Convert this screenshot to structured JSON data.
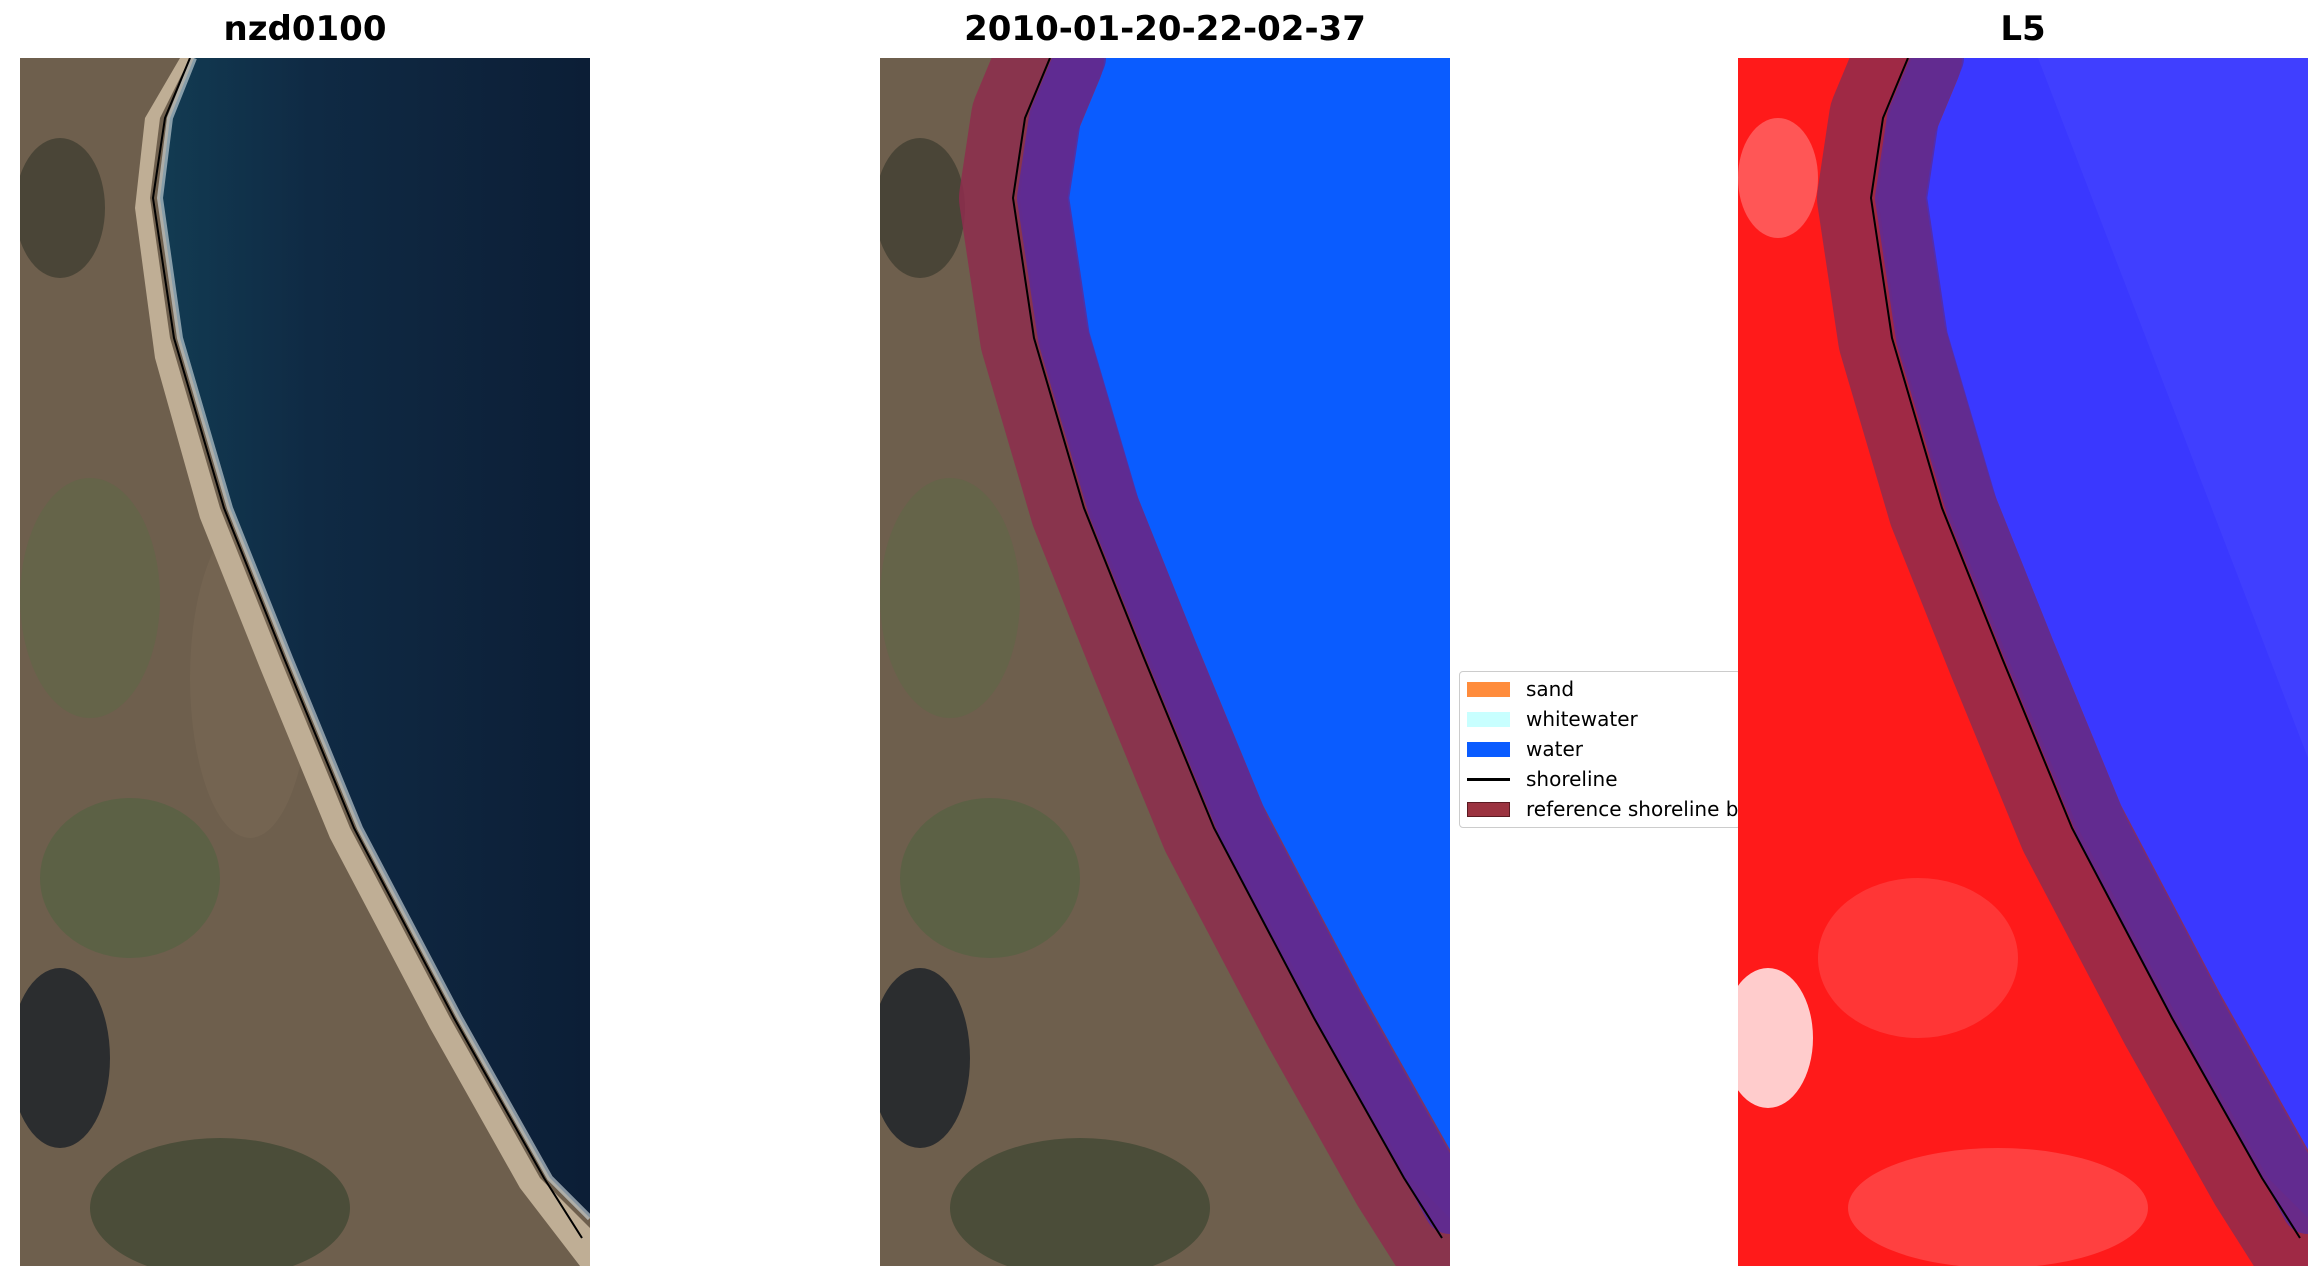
{
  "panels": [
    {
      "id": "rgb",
      "title": "nzd0100"
    },
    {
      "id": "classified",
      "title": "2010-01-20-22-02-37"
    },
    {
      "id": "index",
      "title": "L5"
    }
  ],
  "legend": {
    "items": [
      {
        "label": "sand",
        "color": "#ff8c3c",
        "kind": "patch"
      },
      {
        "label": "whitewater",
        "color": "#c8ffff",
        "kind": "patch"
      },
      {
        "label": "water",
        "color": "#0a5cff",
        "kind": "patch"
      },
      {
        "label": "shoreline",
        "color": "#000000",
        "kind": "line"
      },
      {
        "label": "reference shoreline buffer",
        "color": "#9b3340",
        "kind": "patch"
      }
    ]
  },
  "colors": {
    "land": "#6d5d4a",
    "ocean": "#0f2740",
    "water_class": "#0a5cff",
    "buffer": "#8e2d4d",
    "index_land": "#ff1a1a",
    "index_water": "#3a38ff"
  }
}
